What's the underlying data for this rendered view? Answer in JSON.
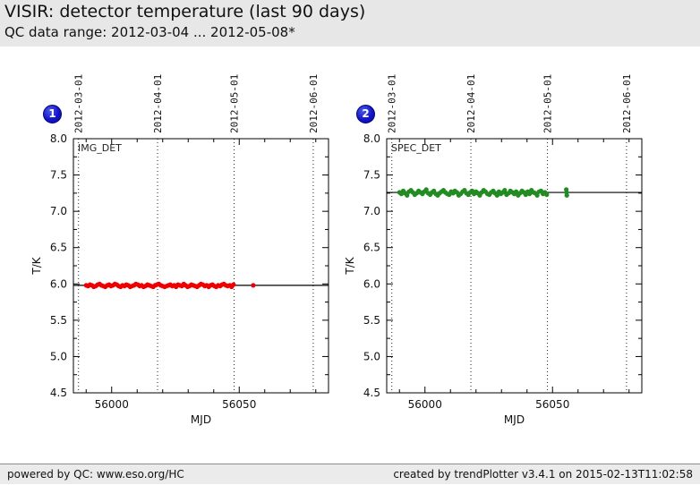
{
  "header": {
    "title": "VISIR: detector temperature (last 90 days)",
    "subtitle": "QC data range: 2012-03-04 ... 2012-05-08*"
  },
  "footer": {
    "left": "powered by QC: www.eso.org/HC",
    "right": "created by trendPlotter v3.4.1 on 2015-02-13T11:02:58"
  },
  "colors": {
    "header_bg": "#e7e7e7",
    "footer_bg": "#ebebeb",
    "badge_blue": "#1414c8",
    "img_det_red": "#ee0000",
    "spec_det_green": "#228b22",
    "axis_black": "#000000"
  },
  "chart_data": [
    {
      "type": "scatter",
      "badge": "1",
      "series_label": "IMG_DET",
      "xlabel": "MJD",
      "ylabel": "T/K",
      "xlim": [
        55985,
        56085
      ],
      "ylim": [
        4.5,
        8.0
      ],
      "x_major_ticks": [
        56000,
        56050
      ],
      "x_major_tick_labels": [
        "56000",
        "56050"
      ],
      "x_minor_tick_step": 10,
      "y_major_tick_step": 0.5,
      "y_minor_tick_step": 0.25,
      "y_tick_labels": [
        "8.0",
        "7.5",
        "7.0",
        "6.5",
        "6.0",
        "5.5",
        "5.0",
        "4.5"
      ],
      "date_gridlines": [
        {
          "mjd": 55987,
          "label": "2012-03-01"
        },
        {
          "mjd": 56018,
          "label": "2012-04-01"
        },
        {
          "mjd": 56048,
          "label": "2012-05-01"
        },
        {
          "mjd": 56079,
          "label": "2012-06-01"
        }
      ],
      "mean_line_y": 5.98,
      "point_color": "#ee0000",
      "points": {
        "x_start": 55990,
        "x_step": 0.75,
        "y": [
          5.98,
          5.97,
          5.99,
          5.98,
          5.96,
          5.97,
          5.99,
          6.0,
          5.98,
          5.97,
          5.96,
          5.98,
          5.99,
          5.97,
          5.98,
          6.0,
          5.99,
          5.97,
          5.96,
          5.98,
          5.97,
          5.99,
          5.98,
          5.96,
          5.97,
          5.98,
          6.0,
          5.99,
          5.97,
          5.98,
          5.96,
          5.97,
          5.99,
          5.98,
          5.97,
          5.96,
          5.98,
          5.99,
          6.0,
          5.98,
          5.97,
          5.96,
          5.97,
          5.98,
          5.99,
          5.97,
          5.98,
          5.96,
          5.99,
          5.98,
          5.97,
          6.0,
          5.98,
          5.96,
          5.97,
          5.99,
          5.98,
          5.97,
          5.96,
          5.98,
          6.0,
          5.99,
          5.97,
          5.98,
          5.96,
          5.98,
          5.99,
          5.97,
          5.96,
          5.98,
          5.97,
          5.99,
          6.0,
          5.98,
          5.97,
          5.98,
          5.96,
          5.99
        ]
      },
      "extra_points": [
        [
          56055.5,
          5.98
        ]
      ]
    },
    {
      "type": "scatter",
      "badge": "2",
      "series_label": "SPEC_DET",
      "xlabel": "MJD",
      "ylabel": "T/K",
      "xlim": [
        55985,
        56085
      ],
      "ylim": [
        4.5,
        8.0
      ],
      "x_major_ticks": [
        56000,
        56050
      ],
      "x_major_tick_labels": [
        "56000",
        "56050"
      ],
      "x_minor_tick_step": 10,
      "y_major_tick_step": 0.5,
      "y_minor_tick_step": 0.25,
      "y_tick_labels": [
        "8.0",
        "7.5",
        "7.0",
        "6.5",
        "6.0",
        "5.5",
        "5.0",
        "4.5"
      ],
      "date_gridlines": [
        {
          "mjd": 55987,
          "label": "2012-03-01"
        },
        {
          "mjd": 56018,
          "label": "2012-04-01"
        },
        {
          "mjd": 56048,
          "label": "2012-05-01"
        },
        {
          "mjd": 56079,
          "label": "2012-06-01"
        }
      ],
      "mean_line_y": 7.26,
      "point_color": "#228b22",
      "points": {
        "x_start": 55990,
        "x_step": 0.75,
        "y": [
          7.26,
          7.24,
          7.28,
          7.25,
          7.22,
          7.27,
          7.29,
          7.26,
          7.23,
          7.25,
          7.28,
          7.26,
          7.24,
          7.27,
          7.3,
          7.25,
          7.23,
          7.26,
          7.28,
          7.24,
          7.22,
          7.25,
          7.27,
          7.29,
          7.26,
          7.24,
          7.23,
          7.27,
          7.25,
          7.28,
          7.26,
          7.22,
          7.24,
          7.27,
          7.29,
          7.25,
          7.23,
          7.26,
          7.28,
          7.24,
          7.27,
          7.25,
          7.22,
          7.26,
          7.29,
          7.27,
          7.24,
          7.23,
          7.26,
          7.28,
          7.25,
          7.22,
          7.27,
          7.24,
          7.26,
          7.29,
          7.23,
          7.25,
          7.28,
          7.26,
          7.24,
          7.27,
          7.22,
          7.25,
          7.28,
          7.26,
          7.23,
          7.27,
          7.24,
          7.29,
          7.26,
          7.25,
          7.22,
          7.27,
          7.28,
          7.24,
          7.26,
          7.23
        ]
      },
      "extra_points": [
        [
          56055.4,
          7.3
        ],
        [
          56055.5,
          7.26
        ],
        [
          56055.6,
          7.22
        ]
      ]
    }
  ]
}
